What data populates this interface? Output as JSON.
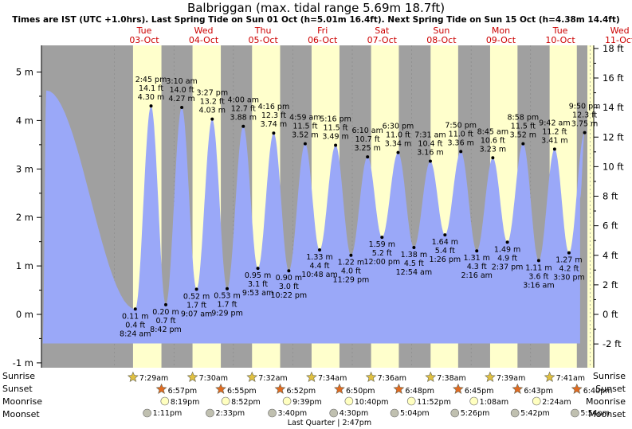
{
  "title": "Balbriggan (max. tidal range 5.69m 18.7ft)",
  "subtitle": "Times are IST (UTC +1.0hrs). Last Spring Tide on Sun 01 Oct (h=5.01m 16.4ft). Next Spring Tide on Sun 15 Oct (h=4.38m 14.4ft)",
  "colors": {
    "night": "#a0a0a0",
    "day": "#ffffcc",
    "water": "#9aa8f8",
    "day_label": "#cc0000",
    "sun_rise": "#e0c040",
    "sun_set": "#e06a20",
    "moon_rise": "#ffffc0",
    "moon_set": "#c0c0b0"
  },
  "chart_data": {
    "type": "area",
    "title": "Balbriggan (max. tidal range 5.69m 18.7ft)",
    "x_unit": "hours since Tue 03-Oct 00:00",
    "xlim": [
      -29.5,
      193.5
    ],
    "ylim_m": [
      -1.1,
      5.55
    ],
    "ylim_ft": [
      -3.6,
      18.2
    ],
    "left_ticks": [
      "-1 m",
      "0 m",
      "1 m",
      "2 m",
      "3 m",
      "4 m",
      "5 m"
    ],
    "left_tick_values": [
      -1,
      0,
      1,
      2,
      3,
      4,
      5
    ],
    "right_ticks": [
      "-2 ft",
      "0 ft",
      "2 ft",
      "4 ft",
      "6 ft",
      "8 ft",
      "10 ft",
      "12 ft",
      "14 ft",
      "16 ft",
      "18 ft"
    ],
    "right_tick_values": [
      -2,
      0,
      2,
      4,
      6,
      8,
      10,
      12,
      14,
      16,
      18
    ],
    "days": [
      {
        "name": "Tue",
        "date": "03-Oct"
      },
      {
        "name": "Wed",
        "date": "04-Oct"
      },
      {
        "name": "Thu",
        "date": "05-Oct"
      },
      {
        "name": "Fri",
        "date": "06-Oct"
      },
      {
        "name": "Sat",
        "date": "07-Oct"
      },
      {
        "name": "Sun",
        "date": "08-Oct"
      },
      {
        "name": "Mon",
        "date": "09-Oct"
      },
      {
        "name": "Tue",
        "date": "10-Oct"
      },
      {
        "name": "Wed",
        "date": "11-Oct"
      }
    ],
    "curve_start": {
      "hours": -29,
      "height_m": -0.6
    },
    "curve_first_high": {
      "hours": -27.5,
      "height_m": 4.62
    },
    "curve_end": {
      "hours": 188,
      "height_m": 2.4
    },
    "tides": [
      {
        "hours": 8.4,
        "type": "low",
        "time": "8:24 am",
        "m": "0.11 m",
        "ft": "0.4 ft",
        "height_m": 0.11
      },
      {
        "hours": 14.75,
        "type": "high",
        "time": "2:45 pm",
        "m": "4.30 m",
        "ft": "14.1 ft",
        "height_m": 4.3
      },
      {
        "hours": 20.7,
        "type": "low",
        "time": "8:42 pm",
        "m": "0.20 m",
        "ft": "0.7 ft",
        "height_m": 0.2
      },
      {
        "hours": 27.17,
        "type": "high",
        "time": "3:10 am",
        "m": "4.27 m",
        "ft": "14.0 ft",
        "height_m": 4.27
      },
      {
        "hours": 33.12,
        "type": "low",
        "time": "9:07 am",
        "m": "0.52 m",
        "ft": "1.7 ft",
        "height_m": 0.52
      },
      {
        "hours": 39.45,
        "type": "high",
        "time": "3:27 pm",
        "m": "4.03 m",
        "ft": "13.2 ft",
        "height_m": 4.03
      },
      {
        "hours": 45.48,
        "type": "low",
        "time": "9:29 pm",
        "m": "0.53 m",
        "ft": "1.7 ft",
        "height_m": 0.53
      },
      {
        "hours": 52.0,
        "type": "high",
        "time": "4:00 am",
        "m": "3.88 m",
        "ft": "12.7 ft",
        "height_m": 3.88
      },
      {
        "hours": 57.88,
        "type": "low",
        "time": "9:53 am",
        "m": "0.95 m",
        "ft": "3.1 ft",
        "height_m": 0.95
      },
      {
        "hours": 64.27,
        "type": "high",
        "time": "4:16 pm",
        "m": "3.74 m",
        "ft": "12.3 ft",
        "height_m": 3.74
      },
      {
        "hours": 70.37,
        "type": "low",
        "time": "10:22 pm",
        "m": "0.90 m",
        "ft": "3.0 ft",
        "height_m": 0.9
      },
      {
        "hours": 76.98,
        "type": "high",
        "time": "4:59 am",
        "m": "3.52 m",
        "ft": "11.5 ft",
        "height_m": 3.52
      },
      {
        "hours": 82.8,
        "type": "low",
        "time": "10:48 am",
        "m": "1.33 m",
        "ft": "4.4 ft",
        "height_m": 1.33
      },
      {
        "hours": 89.27,
        "type": "high",
        "time": "5:16 pm",
        "m": "3.49 m",
        "ft": "11.5 ft",
        "height_m": 3.49
      },
      {
        "hours": 95.48,
        "type": "low",
        "time": "11:29 pm",
        "m": "1.22 m",
        "ft": "4.0 ft",
        "height_m": 1.22
      },
      {
        "hours": 102.17,
        "type": "high",
        "time": "6:10 am",
        "m": "3.25 m",
        "ft": "10.7 ft",
        "height_m": 3.25
      },
      {
        "hours": 108.0,
        "type": "low",
        "time": "12:00 pm",
        "m": "1.59 m",
        "ft": "5.2 ft",
        "height_m": 1.59
      },
      {
        "hours": 114.5,
        "type": "high",
        "time": "6:30 pm",
        "m": "3.34 m",
        "ft": "11.0 ft",
        "height_m": 3.34
      },
      {
        "hours": 120.9,
        "type": "low",
        "time": "12:54 am",
        "m": "1.38 m",
        "ft": "4.5 ft",
        "height_m": 1.38
      },
      {
        "hours": 127.52,
        "type": "high",
        "time": "7:31 am",
        "m": "3.16 m",
        "ft": "10.4 ft",
        "height_m": 3.16
      },
      {
        "hours": 133.43,
        "type": "low",
        "time": "1:26 pm",
        "m": "1.64 m",
        "ft": "5.4 ft",
        "height_m": 1.64
      },
      {
        "hours": 139.83,
        "type": "high",
        "time": "7:50 pm",
        "m": "3.36 m",
        "ft": "11.0 ft",
        "height_m": 3.36
      },
      {
        "hours": 146.27,
        "type": "low",
        "time": "2:16 am",
        "m": "1.31 m",
        "ft": "4.3 ft",
        "height_m": 1.31
      },
      {
        "hours": 152.75,
        "type": "high",
        "time": "8:45 am",
        "m": "3.23 m",
        "ft": "10.6 ft",
        "height_m": 3.23
      },
      {
        "hours": 158.62,
        "type": "low",
        "time": "2:37 pm",
        "m": "1.49 m",
        "ft": "4.9 ft",
        "height_m": 1.49
      },
      {
        "hours": 164.97,
        "type": "high",
        "time": "8:58 pm",
        "m": "3.52 m",
        "ft": "11.5 ft",
        "height_m": 3.52
      },
      {
        "hours": 171.27,
        "type": "low",
        "time": "3:16 am",
        "m": "1.11 m",
        "ft": "3.6 ft",
        "height_m": 1.11
      },
      {
        "hours": 177.7,
        "type": "high",
        "time": "9:42 am",
        "m": "3.41 m",
        "ft": "11.2 ft",
        "height_m": 3.41
      },
      {
        "hours": 183.5,
        "type": "low",
        "time": "3:30 pm",
        "m": "1.27 m",
        "ft": "4.2 ft",
        "height_m": 1.27
      },
      {
        "hours": 189.83,
        "type": "high",
        "time": "9:50 pm",
        "m": "3.75 m",
        "ft": "12.3 ft",
        "height_m": 3.75
      }
    ],
    "daylight": [
      {
        "rise": 7.48,
        "set": 18.95
      },
      {
        "rise": 31.5,
        "set": 42.92
      },
      {
        "rise": 55.53,
        "set": 66.87
      },
      {
        "rise": 79.57,
        "set": 90.83
      },
      {
        "rise": 103.6,
        "set": 114.8
      },
      {
        "rise": 127.63,
        "set": 138.75
      },
      {
        "rise": 151.65,
        "set": 162.72
      },
      {
        "rise": 175.68,
        "set": 186.67
      }
    ],
    "sunrise": [
      {
        "hours": 7.48,
        "time": "7:29am"
      },
      {
        "hours": 31.5,
        "time": "7:30am"
      },
      {
        "hours": 55.53,
        "time": "7:32am"
      },
      {
        "hours": 79.57,
        "time": "7:34am"
      },
      {
        "hours": 103.6,
        "time": "7:36am"
      },
      {
        "hours": 127.63,
        "time": "7:38am"
      },
      {
        "hours": 151.65,
        "time": "7:39am"
      },
      {
        "hours": 175.68,
        "time": "7:41am"
      }
    ],
    "sunset": [
      {
        "hours": 18.95,
        "time": "6:57pm"
      },
      {
        "hours": 42.92,
        "time": "6:55pm"
      },
      {
        "hours": 66.87,
        "time": "6:52pm"
      },
      {
        "hours": 90.83,
        "time": "6:50pm"
      },
      {
        "hours": 114.8,
        "time": "6:48pm"
      },
      {
        "hours": 138.75,
        "time": "6:45pm"
      },
      {
        "hours": 162.72,
        "time": "6:43pm"
      },
      {
        "hours": 186.67,
        "time": "6:40pm"
      }
    ],
    "moonrise": [
      {
        "hours": 20.32,
        "time": "8:19pm"
      },
      {
        "hours": 44.87,
        "time": "8:52pm"
      },
      {
        "hours": 69.65,
        "time": "9:39pm"
      },
      {
        "hours": 94.67,
        "time": "10:40pm"
      },
      {
        "hours": 119.87,
        "time": "11:52pm"
      },
      {
        "hours": 145.13,
        "time": "1:08am"
      },
      {
        "hours": 170.4,
        "time": "2:24am"
      }
    ],
    "moonset": [
      {
        "hours": 13.18,
        "time": "1:11pm"
      },
      {
        "hours": 38.55,
        "time": "2:33pm"
      },
      {
        "hours": 63.67,
        "time": "3:40pm"
      },
      {
        "hours": 88.5,
        "time": "4:30pm"
      },
      {
        "hours": 113.07,
        "time": "5:04pm"
      },
      {
        "hours": 137.43,
        "time": "5:26pm"
      },
      {
        "hours": 161.7,
        "time": "5:42pm"
      },
      {
        "hours": 185.9,
        "time": "5:54pm"
      }
    ],
    "moon_phase": {
      "hours": 86.8,
      "label": "Last Quarter | 2:47pm"
    }
  },
  "rows": {
    "sunrise": "Sunrise",
    "sunset": "Sunset",
    "moonrise": "Moonrise",
    "moonset": "Moonset"
  }
}
